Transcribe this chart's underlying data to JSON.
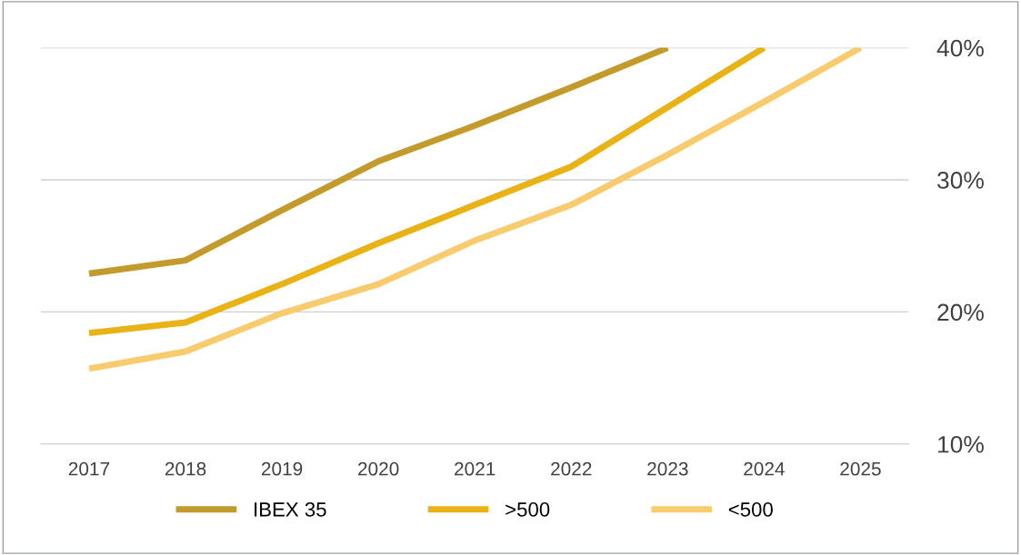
{
  "chart_data": {
    "type": "line",
    "categories": [
      "2017",
      "2018",
      "2019",
      "2020",
      "2021",
      "2022",
      "2023",
      "2024",
      "2025"
    ],
    "series": [
      {
        "name": "IBEX 35",
        "color": "#c39a2c",
        "values": [
          22.9,
          23.9,
          27.7,
          31.4,
          34.1,
          37.0,
          40.0,
          null,
          null
        ]
      },
      {
        "name": ">500",
        "color": "#e9b216",
        "values": [
          18.4,
          19.2,
          22.1,
          25.2,
          28.1,
          31.0,
          35.5,
          40.0,
          null
        ]
      },
      {
        "name": "<500",
        "color": "#f8cb6e",
        "values": [
          15.7,
          17.0,
          19.9,
          22.1,
          25.4,
          28.1,
          31.9,
          35.9,
          40.0
        ]
      }
    ],
    "ylim": [
      10,
      40
    ],
    "yticks": [
      {
        "value": 10,
        "label": "10%"
      },
      {
        "value": 20,
        "label": "20%"
      },
      {
        "value": 30,
        "label": "30%"
      },
      {
        "value": 40,
        "label": "40%"
      }
    ],
    "grid": "y",
    "legend": "bottom",
    "marker": "none",
    "line_style": "solid"
  }
}
